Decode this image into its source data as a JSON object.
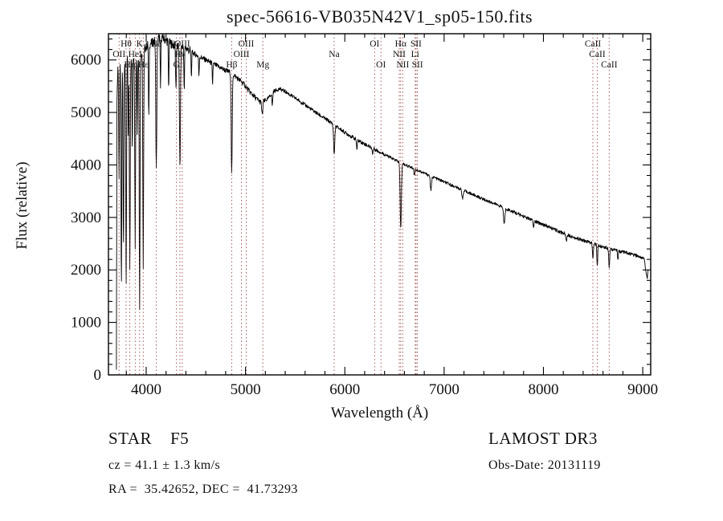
{
  "title": "spec-56616-VB035N42V1_sp05-150.fits",
  "footer": {
    "class_line": "STAR    F5",
    "cz_line": "cz = 41.1 ± 1.3 km/s",
    "radec_line": "RA =  35.42652, DEC =  41.73293",
    "survey": "LAMOST DR3",
    "obs_date_line": "Obs-Date: 20131119"
  },
  "chart_data": {
    "type": "line",
    "title": "spec-56616-VB035N42V1_sp05-150.fits",
    "xlabel": "Wavelength (Å)",
    "ylabel": "Flux (relative)",
    "xlim": [
      3620,
      9080
    ],
    "ylim": [
      0,
      6500
    ],
    "x_ticks": [
      4000,
      5000,
      6000,
      7000,
      8000,
      9000
    ],
    "x_minor_step": 200,
    "y_ticks": [
      0,
      1000,
      2000,
      3000,
      4000,
      5000,
      6000
    ],
    "y_minor_step": 200,
    "grid": false,
    "spectrum_color": "#000000",
    "marker_color": "#8B2A2A",
    "sample_step": 3,
    "continuum": [
      [
        3700,
        100
      ],
      [
        3705,
        5200
      ],
      [
        3715,
        5900
      ],
      [
        3740,
        5950
      ],
      [
        3780,
        6000
      ],
      [
        3820,
        6050
      ],
      [
        3860,
        6050
      ],
      [
        3900,
        6100
      ],
      [
        3940,
        6100
      ],
      [
        3980,
        6200
      ],
      [
        4020,
        6300
      ],
      [
        4060,
        6320
      ],
      [
        4100,
        6380
      ],
      [
        4140,
        6450
      ],
      [
        4180,
        6400
      ],
      [
        4220,
        6350
      ],
      [
        4260,
        6300
      ],
      [
        4300,
        6260
      ],
      [
        4340,
        6250
      ],
      [
        4380,
        6250
      ],
      [
        4420,
        6200
      ],
      [
        4460,
        6150
      ],
      [
        4500,
        6100
      ],
      [
        4550,
        6050
      ],
      [
        4600,
        6000
      ],
      [
        4650,
        5950
      ],
      [
        4700,
        5900
      ],
      [
        4750,
        5850
      ],
      [
        4800,
        5800
      ],
      [
        4861,
        5750
      ],
      [
        4920,
        5650
      ],
      [
        4980,
        5550
      ],
      [
        5040,
        5400
      ],
      [
        5100,
        5280
      ],
      [
        5160,
        5180
      ],
      [
        5220,
        5250
      ],
      [
        5280,
        5400
      ],
      [
        5340,
        5450
      ],
      [
        5400,
        5400
      ],
      [
        5460,
        5320
      ],
      [
        5520,
        5250
      ],
      [
        5580,
        5170
      ],
      [
        5640,
        5090
      ],
      [
        5700,
        5010
      ],
      [
        5760,
        4930
      ],
      [
        5820,
        4860
      ],
      [
        5880,
        4780
      ],
      [
        5940,
        4700
      ],
      [
        6000,
        4620
      ],
      [
        6060,
        4550
      ],
      [
        6120,
        4480
      ],
      [
        6180,
        4420
      ],
      [
        6240,
        4360
      ],
      [
        6300,
        4300
      ],
      [
        6360,
        4240
      ],
      [
        6420,
        4180
      ],
      [
        6480,
        4120
      ],
      [
        6540,
        4060
      ],
      [
        6600,
        4010
      ],
      [
        6660,
        3960
      ],
      [
        6720,
        3910
      ],
      [
        6780,
        3860
      ],
      [
        6840,
        3810
      ],
      [
        6900,
        3760
      ],
      [
        6960,
        3710
      ],
      [
        7020,
        3660
      ],
      [
        7080,
        3610
      ],
      [
        7140,
        3560
      ],
      [
        7200,
        3510
      ],
      [
        7260,
        3460
      ],
      [
        7320,
        3410
      ],
      [
        7380,
        3360
      ],
      [
        7440,
        3310
      ],
      [
        7500,
        3270
      ],
      [
        7560,
        3220
      ],
      [
        7620,
        3170
      ],
      [
        7680,
        3120
      ],
      [
        7740,
        3070
      ],
      [
        7800,
        3020
      ],
      [
        7860,
        2970
      ],
      [
        7920,
        2920
      ],
      [
        7980,
        2880
      ],
      [
        8040,
        2830
      ],
      [
        8100,
        2780
      ],
      [
        8160,
        2730
      ],
      [
        8220,
        2690
      ],
      [
        8280,
        2640
      ],
      [
        8340,
        2600
      ],
      [
        8400,
        2560
      ],
      [
        8460,
        2530
      ],
      [
        8520,
        2490
      ],
      [
        8580,
        2450
      ],
      [
        8640,
        2420
      ],
      [
        8700,
        2390
      ],
      [
        8760,
        2360
      ],
      [
        8820,
        2330
      ],
      [
        8880,
        2300
      ],
      [
        8940,
        2270
      ],
      [
        9000,
        2230
      ],
      [
        9015,
        2200
      ],
      [
        9030,
        2000
      ],
      [
        9045,
        1850
      ],
      [
        9060,
        2050
      ]
    ],
    "absorption_lines": [
      [
        3727,
        2200,
        4
      ],
      [
        3750,
        4300,
        4
      ],
      [
        3771,
        3500,
        4
      ],
      [
        3798,
        4400,
        4
      ],
      [
        3820,
        1500,
        3
      ],
      [
        3835,
        4100,
        4
      ],
      [
        3860,
        1800,
        3
      ],
      [
        3889,
        3600,
        4
      ],
      [
        3910,
        1500,
        3
      ],
      [
        3934,
        4800,
        4
      ],
      [
        3970,
        4200,
        4
      ],
      [
        4026,
        1500,
        3
      ],
      [
        4102,
        2450,
        5
      ],
      [
        4144,
        1000,
        3
      ],
      [
        4226,
        900,
        3
      ],
      [
        4300,
        800,
        4
      ],
      [
        4340,
        2350,
        5
      ],
      [
        4383,
        900,
        3
      ],
      [
        4455,
        500,
        3
      ],
      [
        4531,
        400,
        3
      ],
      [
        4668,
        400,
        3
      ],
      [
        4861,
        1950,
        5
      ],
      [
        5169,
        250,
        5
      ],
      [
        5270,
        250,
        4
      ],
      [
        5893,
        560,
        6
      ],
      [
        6122,
        180,
        4
      ],
      [
        6280,
        120,
        4
      ],
      [
        6563,
        1250,
        6
      ],
      [
        6700,
        120,
        4
      ],
      [
        6867,
        280,
        6
      ],
      [
        7186,
        150,
        7
      ],
      [
        7605,
        300,
        7
      ],
      [
        7900,
        120,
        5
      ],
      [
        8230,
        130,
        5
      ],
      [
        8498,
        320,
        4
      ],
      [
        8542,
        420,
        4
      ],
      [
        8662,
        380,
        4
      ],
      [
        8750,
        150,
        4
      ]
    ],
    "noise_segments": [
      [
        3705,
        4450,
        90
      ],
      [
        4450,
        5200,
        50
      ],
      [
        5200,
        6400,
        35
      ],
      [
        6400,
        7600,
        28
      ],
      [
        7600,
        9065,
        32
      ]
    ],
    "line_markers": [
      {
        "wl": 3727,
        "label": "OII",
        "row": 2
      },
      {
        "wl": 3798,
        "label": "Hθ",
        "row": 1
      },
      {
        "wl": 3835,
        "label": "Hη",
        "row": 3
      },
      {
        "wl": 3889,
        "label": "HeI",
        "row": 2
      },
      {
        "wl": 3934,
        "label": "K",
        "row": 1
      },
      {
        "wl": 3970,
        "label": "Hε",
        "row": 3
      },
      {
        "wl": 4102,
        "label": "Hδ",
        "row": 1
      },
      {
        "wl": 4305,
        "label": "G",
        "row": 3
      },
      {
        "wl": 4340,
        "label": "Hγ",
        "row": 2
      },
      {
        "wl": 4363,
        "label": "OIII",
        "row": 1
      },
      {
        "wl": 4861,
        "label": "Hβ",
        "row": 3
      },
      {
        "wl": 4959,
        "label": "OIII",
        "row": 2
      },
      {
        "wl": 5007,
        "label": "OIII",
        "row": 1
      },
      {
        "wl": 5175,
        "label": "Mg",
        "row": 3
      },
      {
        "wl": 5893,
        "label": "Na",
        "row": 2
      },
      {
        "wl": 6300,
        "label": "OI",
        "row": 1
      },
      {
        "wl": 6364,
        "label": "OI",
        "row": 3
      },
      {
        "wl": 6548,
        "label": "NII",
        "row": 2
      },
      {
        "wl": 6563,
        "label": "Hα",
        "row": 1
      },
      {
        "wl": 6583,
        "label": "NII",
        "row": 3
      },
      {
        "wl": 6708,
        "label": "Li",
        "row": 2
      },
      {
        "wl": 6717,
        "label": "SII",
        "row": 1
      },
      {
        "wl": 6731,
        "label": "SII",
        "row": 3
      },
      {
        "wl": 8498,
        "label": "CaII",
        "row": 1
      },
      {
        "wl": 8542,
        "label": "CaII",
        "row": 2
      },
      {
        "wl": 8662,
        "label": "CaII",
        "row": 3
      }
    ]
  }
}
